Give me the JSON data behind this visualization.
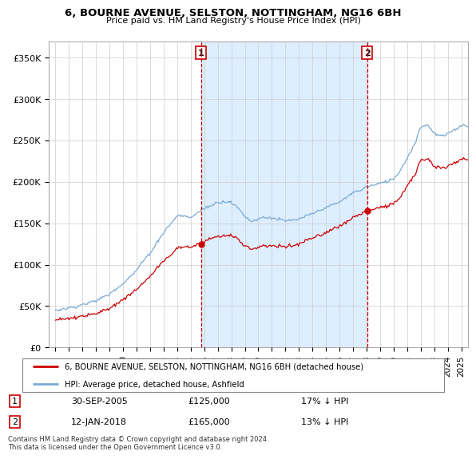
{
  "title": "6, BOURNE AVENUE, SELSTON, NOTTINGHAM, NG16 6BH",
  "subtitle": "Price paid vs. HM Land Registry's House Price Index (HPI)",
  "legend_line1": "6, BOURNE AVENUE, SELSTON, NOTTINGHAM, NG16 6BH (detached house)",
  "legend_line2": "HPI: Average price, detached house, Ashfield",
  "footnote": "Contains HM Land Registry data © Crown copyright and database right 2024.\nThis data is licensed under the Open Government Licence v3.0.",
  "sale1_date": "30-SEP-2005",
  "sale1_price": "£125,000",
  "sale1_hpi": "17% ↓ HPI",
  "sale2_date": "12-JAN-2018",
  "sale2_price": "£165,000",
  "sale2_hpi": "13% ↓ HPI",
  "hpi_color": "#7aaad4",
  "property_color": "#cc0000",
  "vline_color": "#cc0000",
  "shade_color": "#ddeeff",
  "sale1_x": 2005.75,
  "sale2_x": 2018.04,
  "sale1_y": 125000,
  "sale2_y": 165000,
  "ylim_min": 0,
  "ylim_max": 370000,
  "xlim_min": 1994.5,
  "xlim_max": 2025.5,
  "yticks": [
    0,
    50000,
    100000,
    150000,
    200000,
    250000,
    300000,
    350000
  ],
  "ytick_labels": [
    "£0",
    "£50K",
    "£100K",
    "£150K",
    "£200K",
    "£250K",
    "£300K",
    "£350K"
  ],
  "xticks": [
    1995,
    1996,
    1997,
    1998,
    1999,
    2000,
    2001,
    2002,
    2003,
    2004,
    2005,
    2006,
    2007,
    2008,
    2009,
    2010,
    2011,
    2012,
    2013,
    2014,
    2015,
    2016,
    2017,
    2018,
    2019,
    2020,
    2021,
    2022,
    2023,
    2024,
    2025
  ],
  "background_color": "#ffffff",
  "plot_bg_color": "#ffffff"
}
